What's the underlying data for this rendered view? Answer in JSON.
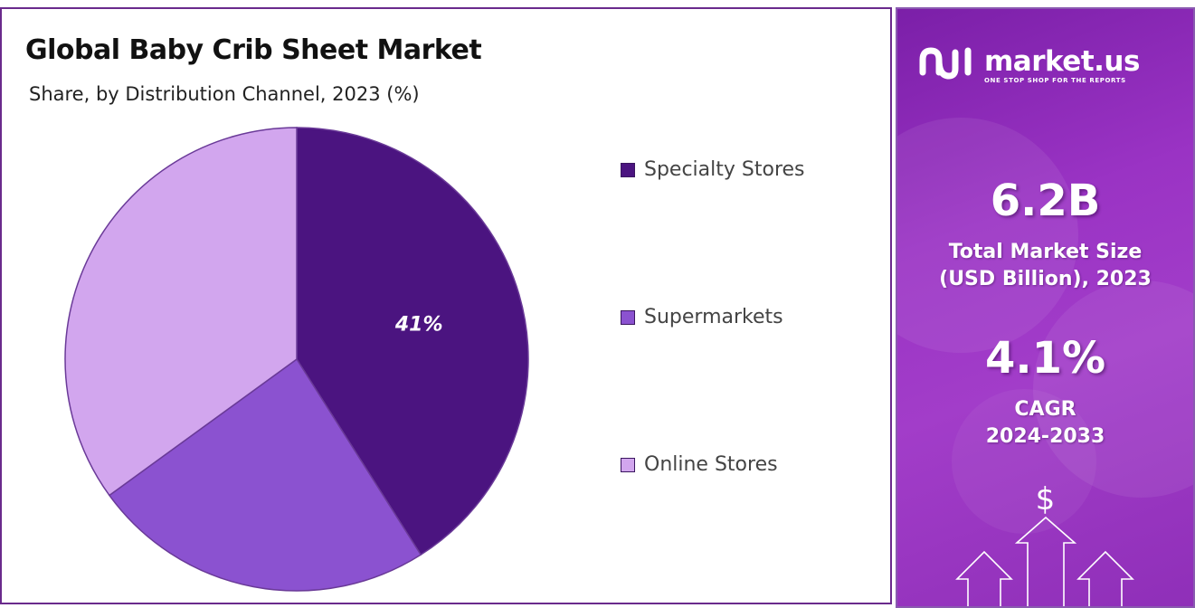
{
  "header": {
    "title": "Global Baby Crib Sheet Market",
    "subtitle": "Share, by Distribution Channel, 2023 (%)"
  },
  "chart_data": {
    "type": "pie",
    "categories": [
      "Specialty Stores",
      "Supermarkets",
      "Online Stores"
    ],
    "values": [
      41,
      24,
      35
    ],
    "data_labels": [
      "41%",
      "",
      ""
    ],
    "colors": [
      "#4b1480",
      "#8b52d0",
      "#d2a6ee"
    ],
    "legend_position": "right"
  },
  "info_panel": {
    "brand_name": "market.us",
    "brand_tagline": "ONE STOP SHOP FOR THE REPORTS",
    "market_size_value": "6.2B",
    "market_size_label_line1": "Total Market Size",
    "market_size_label_line2": "(USD Billion), 2023",
    "cagr_value": "4.1%",
    "cagr_label_line1": "CAGR",
    "cagr_label_line2": "2024-2033",
    "icons": [
      "market-us-logo-icon",
      "dollar-icon",
      "up-arrow-icon"
    ]
  }
}
